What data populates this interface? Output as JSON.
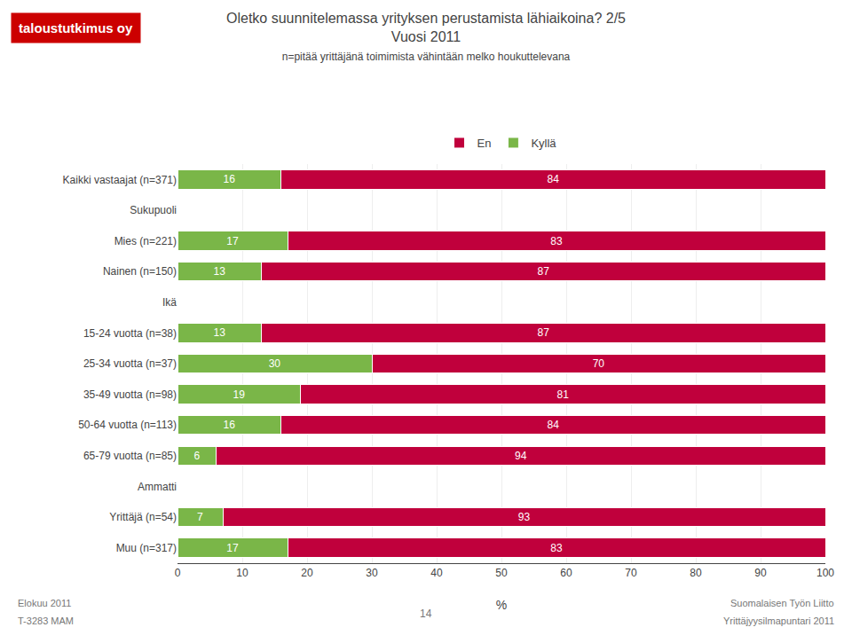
{
  "chart_data": {
    "type": "bar",
    "orientation": "horizontal",
    "stacked": true,
    "title": "Oletko suunnitelemassa yrityksen perustamista lähiaikoina? 2/5\nVuosi 2011",
    "subtitle": "n=pitää yrittäjänä toimimista vähintään melko houkuttelevana",
    "categories": [
      "Kaikki vastaajat (n=371)",
      "Sukupuoli",
      "Mies (n=221)",
      "Nainen (n=150)",
      "Ikä",
      "15-24 vuotta (n=38)",
      "25-34 vuotta (n=37)",
      "35-49 vuotta (n=98)",
      "50-64 vuotta (n=113)",
      "65-79 vuotta (n=85)",
      "Ammatti",
      "Yrittäjä (n=54)",
      "Muu (n=317)"
    ],
    "series": [
      {
        "name": "Kyllä",
        "color": "#7ab648",
        "values": [
          16,
          null,
          17,
          13,
          null,
          13,
          30,
          19,
          16,
          6,
          null,
          7,
          17
        ]
      },
      {
        "name": "En",
        "color": "#c0003c",
        "values": [
          84,
          null,
          83,
          87,
          null,
          87,
          70,
          81,
          84,
          94,
          null,
          93,
          83
        ]
      }
    ],
    "xlabel": "%",
    "xlim": [
      0,
      100
    ],
    "xticks": [
      0,
      10,
      20,
      30,
      40,
      50,
      60,
      70,
      80,
      90,
      100
    ],
    "grid": true,
    "legend": "top",
    "data_labels": true,
    "annotations": [
      {
        "text": "taloustutkimus oy",
        "color": "#cc0000"
      },
      {
        "text": "Elokuu 2011"
      },
      {
        "text": "T-3283 MAM"
      },
      {
        "text": "14"
      },
      {
        "text": "Suomalaisen Työn Liitto"
      },
      {
        "text": "Yrittäjyysilmapuntari 2011"
      }
    ]
  }
}
